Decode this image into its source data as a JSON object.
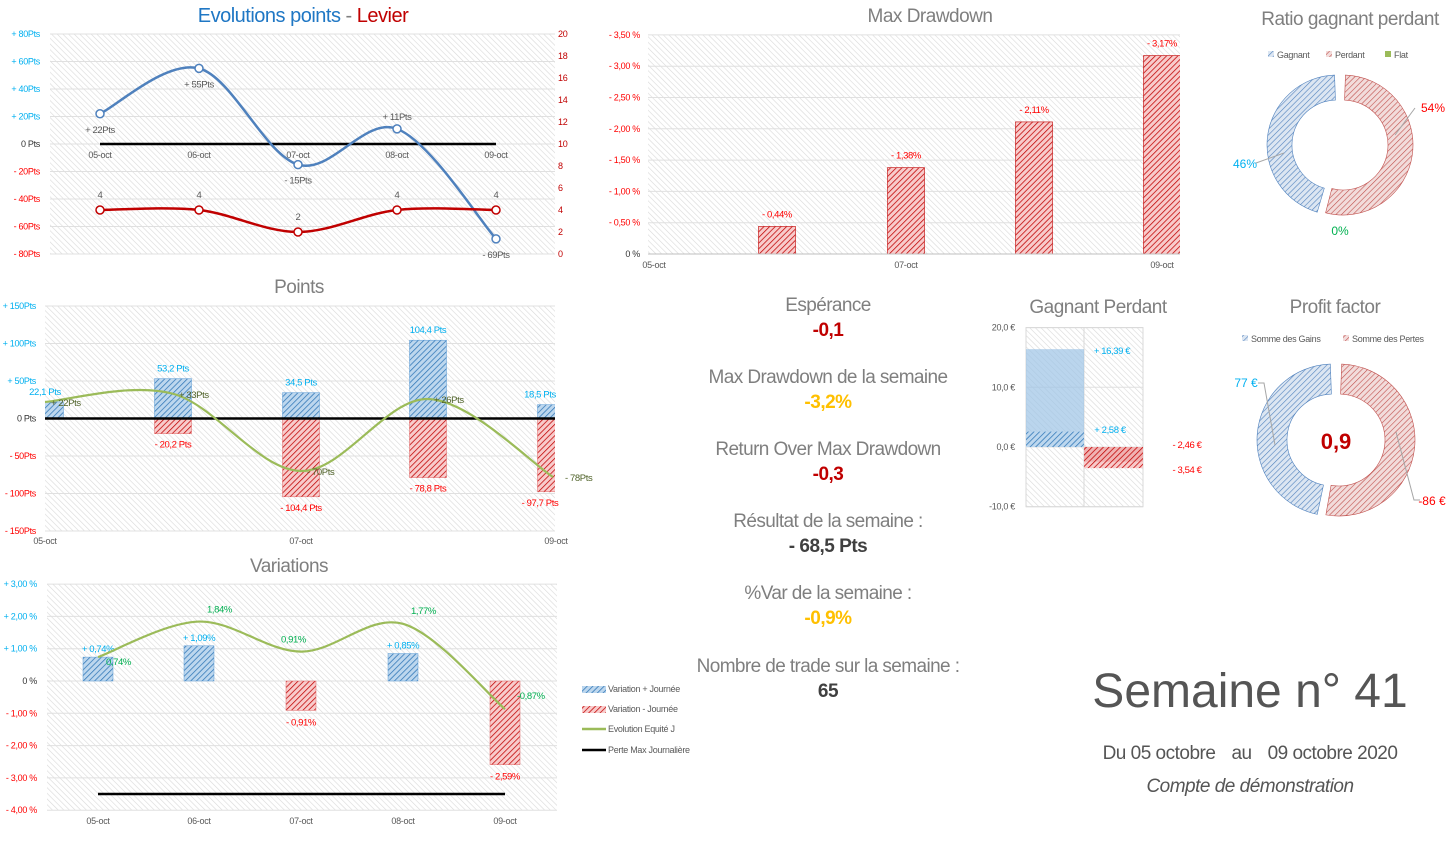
{
  "colors": {
    "gain_blue": "#4f81bd",
    "gain_label": "#00b0f0",
    "loss_red": "#c00000",
    "loss_label": "#ff0000",
    "equity_green": "#9bbb59",
    "equity_label": "#00b050",
    "warning_yellow": "#ffc000",
    "title_gray": "#7f7f7f"
  },
  "kpis": [
    {
      "label": "Espérance",
      "value": "-0,1",
      "color": "#c00000"
    },
    {
      "label": "Max Drawdown de la semaine",
      "value": "-3,2%",
      "color": "#ffc000"
    },
    {
      "label": "Return Over Max Drawdown",
      "value": "-0,3",
      "color": "#c00000"
    },
    {
      "label": "Résultat de la semaine :",
      "value": "- 68,5 Pts",
      "color": "#404040"
    },
    {
      "label": "%Var de la semaine :",
      "value": "-0,9%",
      "color": "#ffc000"
    },
    {
      "label": "Nombre de trade sur la semaine :",
      "value": "65",
      "color": "#404040"
    }
  ],
  "week": {
    "title": "Semaine n° 41",
    "from": "Du 05 octobre",
    "sep": "au",
    "to": "09 octobre 2020",
    "account": "Compte de démonstration"
  },
  "chart_data": [
    {
      "type": "line",
      "title_left": "Evolutions points",
      "title_sep": "-",
      "title_right": "Levier",
      "ylim": [
        -80,
        80
      ],
      "y2lim": [
        0,
        20
      ],
      "y_ticks": [
        80,
        60,
        40,
        20,
        0,
        -20,
        -40,
        -60,
        -80
      ],
      "y_tick_labels": [
        "+ 80Pts",
        "+ 60Pts",
        "+ 40Pts",
        "+ 20Pts",
        "0 Pts",
        "- 20Pts",
        "- 40Pts",
        "- 60Pts",
        "- 80Pts"
      ],
      "y2_ticks": [
        20,
        18,
        16,
        14,
        12,
        10,
        8,
        6,
        4,
        2,
        0
      ],
      "x_tick_labels": [
        "05-oct",
        "06-oct",
        "07-oct",
        "08-oct",
        "09-oct"
      ],
      "points": {
        "values": [
          22,
          55,
          -15,
          11,
          -69
        ],
        "labels": [
          "+ 22Pts",
          "+ 55Pts",
          "- 15Pts",
          "+ 11Pts",
          "- 69Pts"
        ]
      },
      "levier": {
        "axis": "right",
        "values": [
          4,
          4,
          2,
          4,
          4
        ],
        "labels": [
          "4",
          "4",
          "2",
          "4",
          "4"
        ]
      },
      "reference_line": 0
    },
    {
      "type": "bar",
      "title": "Points",
      "ylim": [
        -150,
        150
      ],
      "y_ticks": [
        150,
        100,
        50,
        0,
        -50,
        -100,
        -150
      ],
      "y_tick_labels": [
        "+ 150Pts",
        "+ 100Pts",
        "+ 50Pts",
        "0 Pts",
        "- 50Pts",
        "- 100Pts",
        "- 150Pts"
      ],
      "x_tick_labels": [
        "05-oct",
        "07-oct",
        "09-oct"
      ],
      "gains": [
        22.1,
        53.2,
        34.5,
        104.4,
        18.5
      ],
      "gain_labels": [
        "22,1 Pts",
        "53,2 Pts",
        "34,5 Pts",
        "104,4 Pts",
        "18,5 Pts"
      ],
      "losses": [
        0,
        -20.2,
        -104.4,
        -78.8,
        -97.7
      ],
      "loss_labels": [
        "",
        "- 20,2 Pts",
        "- 104,4 Pts",
        "- 78,8 Pts",
        "- 97,7 Pts"
      ],
      "cumulative": [
        22,
        33,
        -70,
        26,
        -78
      ],
      "cumulative_labels": [
        "+ 22Pts",
        "+ 33Pts",
        "- 70Pts",
        "+ 26Pts",
        "- 78Pts"
      ]
    },
    {
      "type": "bar",
      "title": "Variations",
      "ylim": [
        -4,
        3
      ],
      "y_ticks": [
        3,
        2,
        1,
        0,
        -1,
        -2,
        -3,
        -4
      ],
      "y_tick_labels": [
        "+ 3,00 %",
        "+ 2,00 %",
        "+ 1,00 %",
        "0 %",
        "- 1,00 %",
        "- 2,00 %",
        "- 3,00 %",
        "- 4,00 %"
      ],
      "x_tick_labels": [
        "05-oct",
        "06-oct",
        "07-oct",
        "08-oct",
        "09-oct"
      ],
      "gains": [
        0.74,
        1.09,
        0,
        0.85,
        0
      ],
      "gain_labels": [
        "+ 0,74%",
        "+ 1,09%",
        "",
        "+ 0,85%",
        ""
      ],
      "losses": [
        0,
        0,
        -0.91,
        0,
        -2.59
      ],
      "loss_labels": [
        "",
        "",
        "- 0,91%",
        "",
        "- 2,59%"
      ],
      "equity": [
        0.74,
        1.84,
        0.91,
        1.77,
        -0.87
      ],
      "equity_labels": [
        "0,74%",
        "1,84%",
        "0,91%",
        "1,77%",
        "-0,87%"
      ],
      "max_daily_loss": -3.5,
      "legend": [
        "Variation + Journée",
        "Variation - Journée",
        "Evolution  Equité J",
        "Perte Max Journalière"
      ],
      "legend_placement": "right"
    },
    {
      "type": "bar",
      "title": "Max Drawdown",
      "ylim": [
        0,
        -3.5
      ],
      "y_ticks": [
        -3.5,
        -3,
        -2.5,
        -2,
        -1.5,
        -1,
        -0.5,
        0
      ],
      "y_tick_labels": [
        "- 3,50 %",
        "- 3,00 %",
        "- 2,50 %",
        "- 2,00 %",
        "- 1,50 %",
        "- 1,00 %",
        "- 0,50 %",
        "0 %"
      ],
      "x_tick_labels": [
        "05-oct",
        "07-oct",
        "09-oct"
      ],
      "values": [
        0,
        -0.44,
        -1.38,
        -2.11,
        -3.17
      ],
      "labels": [
        "",
        "- 0,44%",
        "- 1,38%",
        "- 2,11%",
        "- 3,17%"
      ]
    },
    {
      "type": "pie",
      "title": "Ratio gagnant perdant",
      "legend": [
        "Gagnant",
        "Perdant",
        "Flat"
      ],
      "legend_placement": "top",
      "values": [
        46,
        54,
        0
      ],
      "labels": [
        "46%",
        "54%",
        "0%"
      ],
      "colors": [
        "#4f81bd",
        "#c0504d",
        "#9bbb59"
      ]
    },
    {
      "type": "bar",
      "title": "Gagnant Perdant",
      "ylim": [
        -10,
        20
      ],
      "y_ticks": [
        20,
        10,
        0,
        -10
      ],
      "y_tick_labels": [
        "20,0 €",
        "10,0 €",
        "0,0 €",
        "-10,0 €"
      ],
      "gains": [
        16.39,
        2.58
      ],
      "gain_labels": [
        "+ 16,39 €",
        "+ 2,58 €"
      ],
      "losses": [
        -2.46,
        -3.54
      ],
      "loss_labels": [
        "- 2,46 €",
        "- 3,54 €"
      ]
    },
    {
      "type": "pie",
      "title": "Profit factor",
      "legend": [
        "Somme des Gains",
        "Somme des Pertes"
      ],
      "legend_placement": "top",
      "values": [
        77,
        -86
      ],
      "labels": [
        "77 €",
        "-86 €"
      ],
      "center_value": "0,9",
      "colors": [
        "#4f81bd",
        "#c0504d"
      ]
    }
  ]
}
